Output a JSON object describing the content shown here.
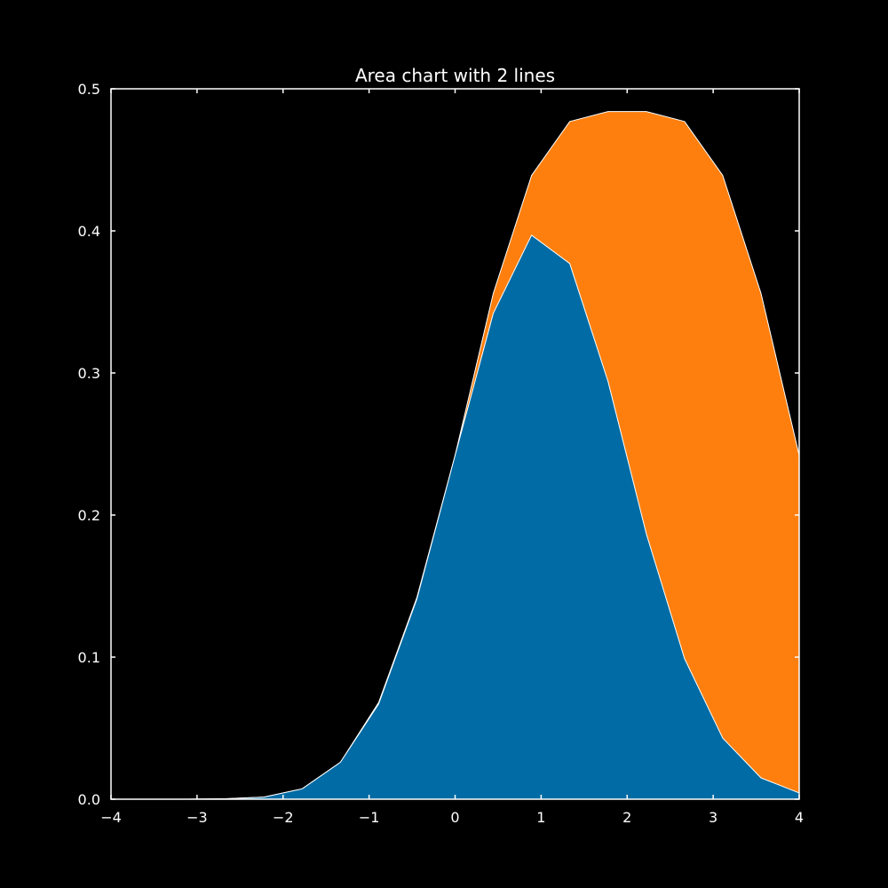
{
  "chart_data": {
    "type": "area",
    "stacked": false,
    "title": "Area chart with 2 lines",
    "xlabel": "",
    "ylabel": "",
    "xlim": [
      -4,
      4
    ],
    "ylim": [
      0,
      0.5
    ],
    "xticks": [
      -4,
      -3,
      -2,
      -1,
      0,
      1,
      2,
      3,
      4
    ],
    "xtick_labels": [
      "−4",
      "−3",
      "−2",
      "−1",
      "0",
      "1",
      "2",
      "3",
      "4"
    ],
    "yticks": [
      0.0,
      0.1,
      0.2,
      0.3,
      0.4,
      0.5
    ],
    "ytick_labels": [
      "0.0",
      "0.1",
      "0.2",
      "0.3",
      "0.4",
      "0.5"
    ],
    "grid": false,
    "legend": "none",
    "x": [
      -4.0,
      -3.556,
      -3.111,
      -2.667,
      -2.222,
      -1.778,
      -1.333,
      -0.889,
      -0.444,
      0.0,
      0.444,
      0.889,
      1.333,
      1.778,
      2.222,
      2.667,
      3.111,
      3.556,
      4.0
    ],
    "series": [
      {
        "color": "#ff7f0e",
        "values": [
          0.0,
          0.0,
          0.0,
          0.0003,
          0.0015,
          0.0073,
          0.026,
          0.068,
          0.142,
          0.242,
          0.356,
          0.439,
          0.477,
          0.484,
          0.484,
          0.477,
          0.439,
          0.356,
          0.242
        ]
      },
      {
        "color": "#006ba4",
        "values": [
          0.0,
          0.0,
          0.0,
          0.0003,
          0.0015,
          0.0073,
          0.026,
          0.067,
          0.141,
          0.242,
          0.342,
          0.397,
          0.377,
          0.294,
          0.187,
          0.099,
          0.043,
          0.015,
          0.0044
        ]
      }
    ]
  }
}
